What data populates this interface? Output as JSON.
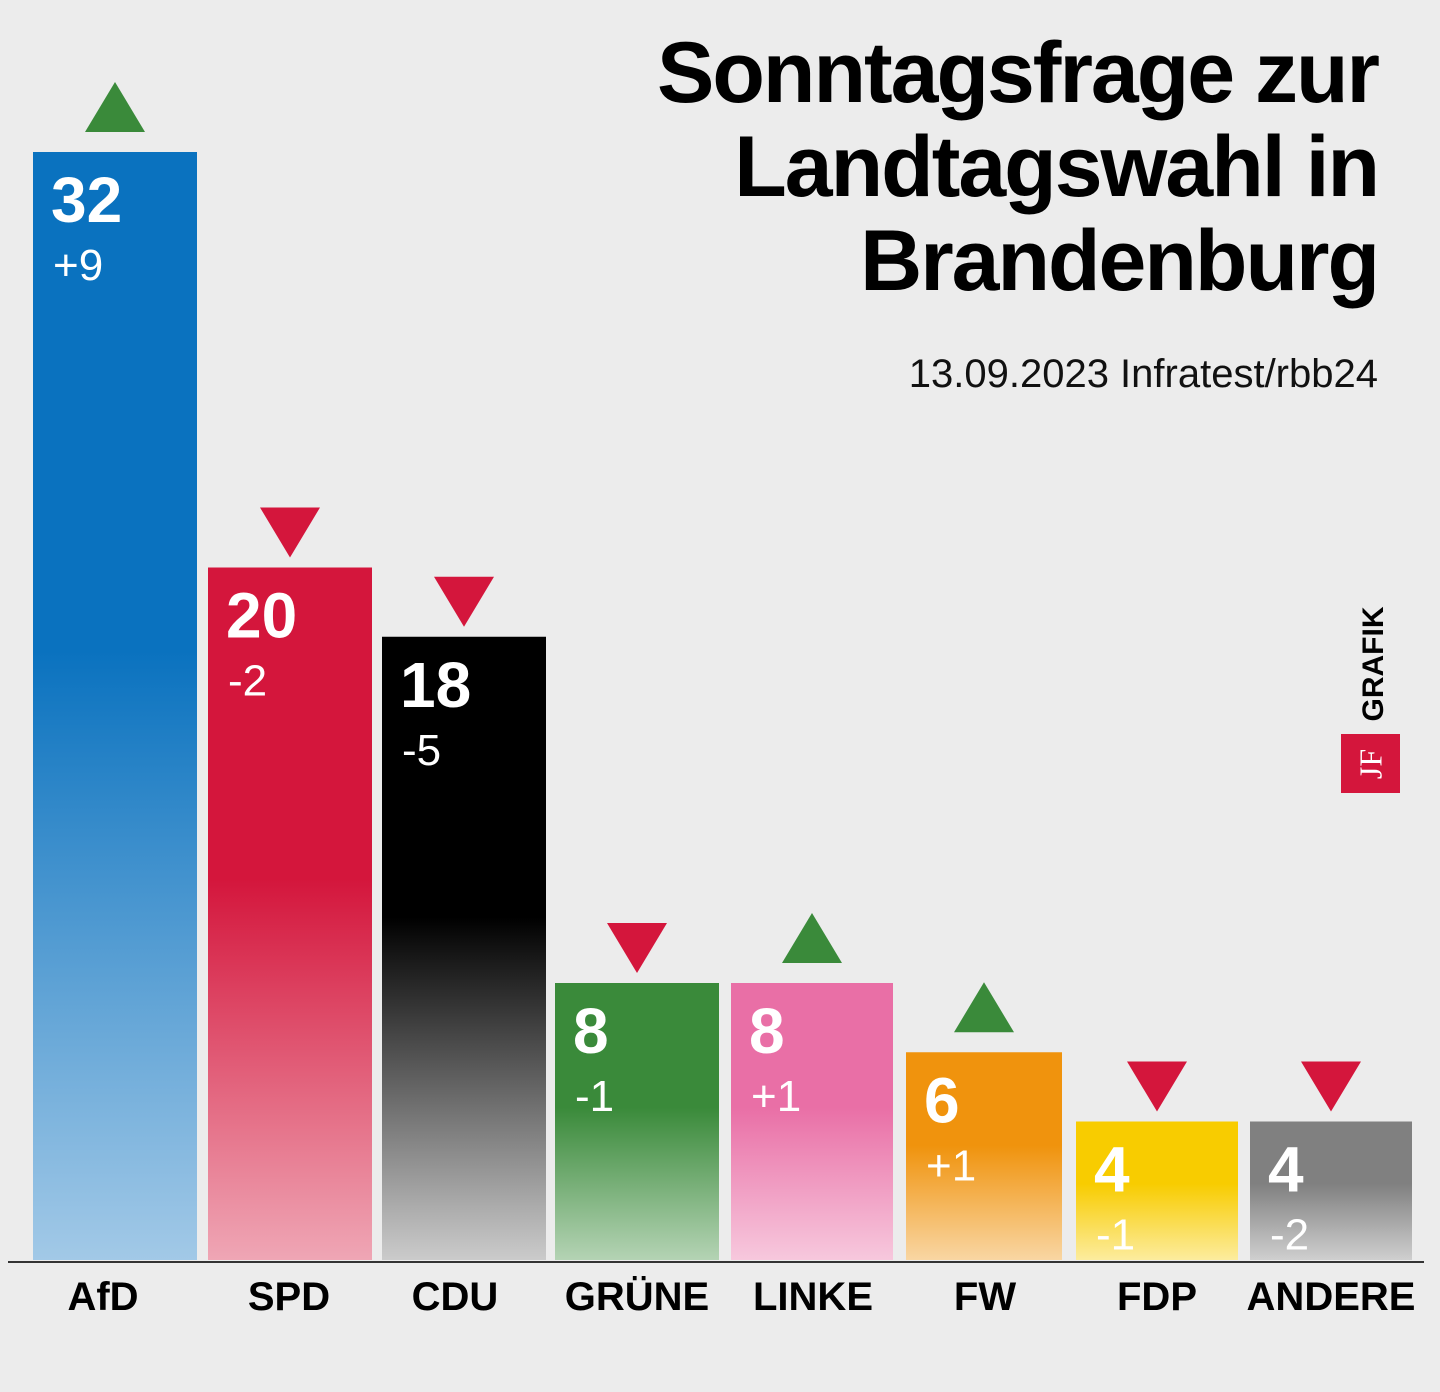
{
  "header": {
    "title_lines": [
      "Sonntagsfrage zur",
      "Landtagswahl in",
      "Brandenburg"
    ],
    "source": "13.09.2023 Infratest/rbb24"
  },
  "branding": {
    "grafik_label": "GRAFIK",
    "logo_text": "JF"
  },
  "chart_data": {
    "type": "bar",
    "title": "Sonntagsfrage zur Landtagswahl in Brandenburg",
    "categories": [
      "AfD",
      "SPD",
      "CDU",
      "GRÜNE",
      "LINKE",
      "FW",
      "FDP",
      "ANDERE"
    ],
    "values": [
      32,
      20,
      18,
      8,
      8,
      6,
      4,
      4
    ],
    "changes": [
      "+9",
      "-2",
      "-5",
      "-1",
      "+1",
      "+1",
      "-1",
      "-2"
    ],
    "trend": [
      "up",
      "down",
      "down",
      "down",
      "up",
      "up",
      "down",
      "down"
    ],
    "colors": [
      "#0a72bf",
      "#d4163c",
      "#000000",
      "#3a8a3a",
      "#e96fa6",
      "#f0930d",
      "#f8cc00",
      "#808080"
    ],
    "trend_colors": {
      "up": "#3a8a3a",
      "down": "#d4163c"
    },
    "ylim": [
      0,
      32
    ],
    "grid": false,
    "legend": "none"
  }
}
